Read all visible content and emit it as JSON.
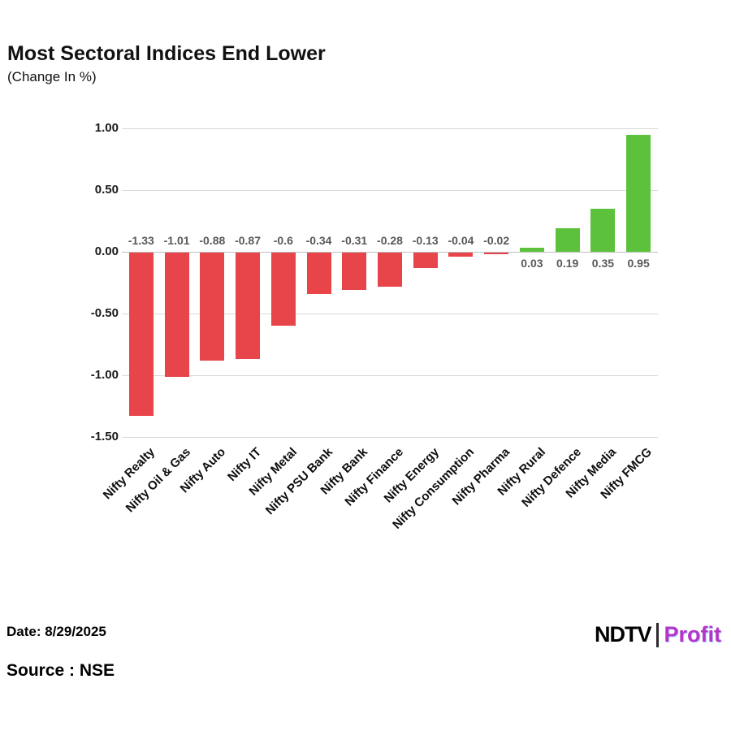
{
  "header": {
    "title": "Most Sectoral Indices End Lower",
    "subtitle": "(Change In %)"
  },
  "chart_data": {
    "type": "bar",
    "title": "Most Sectoral Indices End Lower",
    "subtitle": "(Change In %)",
    "categories": [
      "Nifty Realty",
      "Nifty Oil & Gas",
      "Nifty Auto",
      "Nifty IT",
      "Nifty Metal",
      "Nifty PSU Bank",
      "Nifty Bank",
      "Nifty Finance",
      "Nifty Energy",
      "Nifty Consumption",
      "Nifty Pharma",
      "Nifty Rural",
      "Nifty Defence",
      "Nifty Media",
      "Nifty FMCG"
    ],
    "values": [
      -1.33,
      -1.01,
      -0.88,
      -0.87,
      -0.6,
      -0.34,
      -0.31,
      -0.28,
      -0.13,
      -0.04,
      -0.02,
      0.03,
      0.19,
      0.35,
      0.95
    ],
    "value_labels": [
      "-1.33",
      "-1.01",
      "-0.88",
      "-0.87",
      "-0.6",
      "-0.34",
      "-0.31",
      "-0.28",
      "-0.13",
      "-0.04",
      "-0.02",
      "0.03",
      "0.19",
      "0.35",
      "0.95"
    ],
    "ylim": [
      -1.5,
      1.0
    ],
    "ytick_labels": [
      "1.00",
      "0.50",
      "0.00",
      "-0.50",
      "-1.00",
      "-1.50"
    ],
    "ytick_values": [
      1.0,
      0.5,
      0.0,
      -0.5,
      -1.0,
      -1.5
    ],
    "grid": true,
    "legend": "none",
    "colors": {
      "positive": "#5cc23c",
      "negative": "#e8454b"
    }
  },
  "footer": {
    "date": "Date: 8/29/2025",
    "source": "Source : NSE",
    "logo": {
      "ndtv": "NDTV",
      "profit": "Profit"
    }
  }
}
